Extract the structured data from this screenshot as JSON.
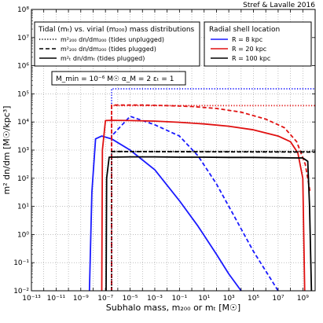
{
  "chart_data": {
    "type": "line",
    "credit": "Stref & Lavalle 2016",
    "xlabel": "Subhalo mass, m₂₀₀ or mₜ [M☉]",
    "ylabel": "m² dn/dm [M☉/kpc³]",
    "xscale": "log",
    "yscale": "log",
    "xlim_log10": [
      -13,
      10
    ],
    "ylim_log10": [
      -2,
      8
    ],
    "grid": true,
    "x_tick_labels": [
      "10⁻¹³",
      "10⁻¹¹",
      "10⁻⁹",
      "10⁻⁷",
      "10⁻⁵",
      "10⁻³",
      "10⁻¹",
      "10¹",
      "10³",
      "10⁵",
      "10⁷",
      "10⁹"
    ],
    "y_tick_labels": [
      "10⁻²",
      "10⁻¹",
      "10⁰",
      "10¹",
      "10²",
      "10³",
      "10⁴",
      "10⁵",
      "10⁶",
      "10⁷",
      "10⁸"
    ],
    "legend_styles": {
      "title": "Tidal (mₜ) vs. virial (m₂₀₀) mass distributions",
      "placement": "upper-left",
      "entries": [
        {
          "label": "m²₂₀₀ dn/dm₂₀₀ (tides unplugged)",
          "dash": "dotted"
        },
        {
          "label": "m²₂₀₀ dn/dm₂₀₀ (tides plugged)",
          "dash": "dashed"
        },
        {
          "label": "m²ₜ dn/dmₜ (tides plugged)",
          "dash": "solid"
        }
      ]
    },
    "legend_radius": {
      "title": "Radial shell location",
      "placement": "upper-right",
      "entries": [
        {
          "label": "R = 8 kpc",
          "color": "#1a1aff"
        },
        {
          "label": "R = 20 kpc",
          "color": "#e01010"
        },
        {
          "label": "R = 100 kpc",
          "color": "#000000"
        }
      ]
    },
    "parameter_box": "M_min = 10⁻⁶ M☉    α_M = 2    εₜ = 1",
    "series": [
      {
        "name": "R = 8 kpc",
        "style": "dotted",
        "color": "#1a1aff",
        "x_log10": [
          -6.5,
          -6.5,
          10
        ],
        "y_log10": [
          -2,
          5.18,
          5.18
        ]
      },
      {
        "name": "R = 8 kpc",
        "style": "dashed",
        "color": "#1a1aff",
        "x_log10": [
          -6.5,
          -6.5,
          -5,
          -3,
          -1,
          0.5,
          2,
          3.5,
          5,
          6,
          7
        ],
        "y_log10": [
          -2,
          3.5,
          4.2,
          3.9,
          3.5,
          2.8,
          1.8,
          0.6,
          -0.6,
          -1.3,
          -2
        ]
      },
      {
        "name": "R = 8 kpc",
        "style": "solid",
        "color": "#1a1aff",
        "x_log10": [
          -8.3,
          -8.1,
          -7.8,
          -7.3,
          -6.5,
          -5,
          -3,
          -1,
          0.5,
          2,
          3,
          4
        ],
        "y_log10": [
          -2,
          1.5,
          3.4,
          3.5,
          3.4,
          3.0,
          2.3,
          1.2,
          0.3,
          -0.7,
          -1.4,
          -2
        ]
      },
      {
        "name": "R = 20 kpc",
        "style": "dotted",
        "color": "#e01010",
        "x_log10": [
          -6.5,
          -6.5,
          10
        ],
        "y_log10": [
          -2,
          4.58,
          4.58
        ]
      },
      {
        "name": "R = 20 kpc",
        "style": "dashed",
        "color": "#e01010",
        "x_log10": [
          -6.5,
          -6.5,
          -4,
          -2,
          0,
          2,
          4,
          6,
          7.5,
          8.5,
          9.2,
          9.6
        ],
        "y_log10": [
          -2,
          4.6,
          4.6,
          4.58,
          4.55,
          4.48,
          4.35,
          4.1,
          3.8,
          3.3,
          2.5,
          1.5
        ]
      },
      {
        "name": "R = 20 kpc",
        "style": "solid",
        "color": "#e01010",
        "x_log10": [
          -7.3,
          -7.25,
          -7.0,
          -6.5,
          -5,
          -3,
          -1,
          1,
          3,
          5,
          7,
          8,
          8.6,
          9.0,
          9.15
        ],
        "y_log10": [
          -2,
          3.0,
          4.05,
          4.06,
          4.05,
          4.03,
          3.99,
          3.93,
          3.85,
          3.72,
          3.5,
          3.3,
          2.9,
          2.0,
          -2
        ]
      },
      {
        "name": "R = 100 kpc",
        "style": "dotted",
        "color": "#000000",
        "x_log10": [
          -6.5,
          -6.5,
          10
        ],
        "y_log10": [
          -2,
          2.95,
          2.95
        ]
      },
      {
        "name": "R = 100 kpc",
        "style": "dashed",
        "color": "#000000",
        "x_log10": [
          -6.5,
          10
        ],
        "y_log10": [
          2.95,
          2.93
        ]
      },
      {
        "name": "R = 100 kpc",
        "style": "solid",
        "color": "#000000",
        "x_log10": [
          -6.95,
          -6.9,
          -6.7,
          -5,
          -3,
          -1,
          1,
          3,
          5,
          7,
          9,
          9.4,
          9.55,
          9.7
        ],
        "y_log10": [
          -2,
          2.0,
          2.75,
          2.76,
          2.76,
          2.75,
          2.75,
          2.74,
          2.74,
          2.73,
          2.72,
          2.6,
          1.0,
          -2
        ]
      }
    ]
  }
}
